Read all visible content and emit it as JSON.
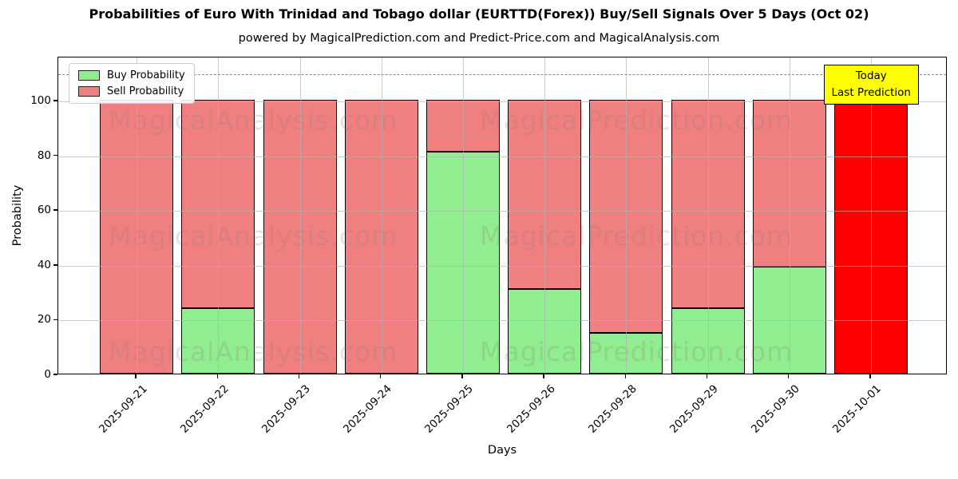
{
  "page": {
    "title": "Probabilities of Euro With Trinidad and Tobago dollar (EURTTD(Forex)) Buy/Sell Signals Over 5 Days (Oct 02)",
    "subtitle": "powered by MagicalPrediction.com and Predict-Price.com and MagicalAnalysis.com"
  },
  "chart_data": {
    "type": "bar",
    "stacked": true,
    "title": "Probabilities of Euro With Trinidad and Tobago dollar (EURTTD(Forex)) Buy/Sell Signals Over 5 Days (Oct 02)",
    "subtitle": "powered by MagicalPrediction.com and Predict-Price.com and MagicalAnalysis.com",
    "xlabel": "Days",
    "ylabel": "Probability",
    "ylim": [
      0,
      116
    ],
    "yticks": [
      0,
      20,
      40,
      60,
      80,
      100
    ],
    "grid": true,
    "grid_on_top_of_bars": true,
    "dashed_line_y": 110,
    "legend_position": "upper left",
    "categories": [
      "2025-09-21",
      "2025-09-22",
      "2025-09-23",
      "2025-09-24",
      "2025-09-25",
      "2025-09-26",
      "2025-09-28",
      "2025-09-29",
      "2025-09-30",
      "2025-10-01"
    ],
    "series": [
      {
        "name": "Buy Probability",
        "color": "#90ee90",
        "values": [
          0,
          24,
          0,
          0,
          81,
          31,
          15,
          24,
          39,
          0
        ]
      },
      {
        "name": "Sell Probability",
        "color": "#f08080",
        "values": [
          100,
          76,
          100,
          100,
          19,
          69,
          85,
          76,
          61,
          100
        ]
      }
    ],
    "highlight_bar": {
      "index": 9,
      "sell_color": "#ff0000",
      "label": "Today Last Prediction"
    }
  },
  "annotation": {
    "line1": "Today",
    "line2": "Last Prediction",
    "bg_color": "#ffff00"
  },
  "watermarks": {
    "left_text": "MagicalAnalysis.com",
    "right_text": "MagicalPrediction.com",
    "rows": 3
  },
  "colors": {
    "buy": "#90ee90",
    "sell": "#f08080",
    "today_sell": "#ff0000",
    "bar_edge": "#000000",
    "annotation_bg": "#ffff00",
    "grid": "#b0b0b0",
    "dashed_line": "#8a8a8a"
  }
}
